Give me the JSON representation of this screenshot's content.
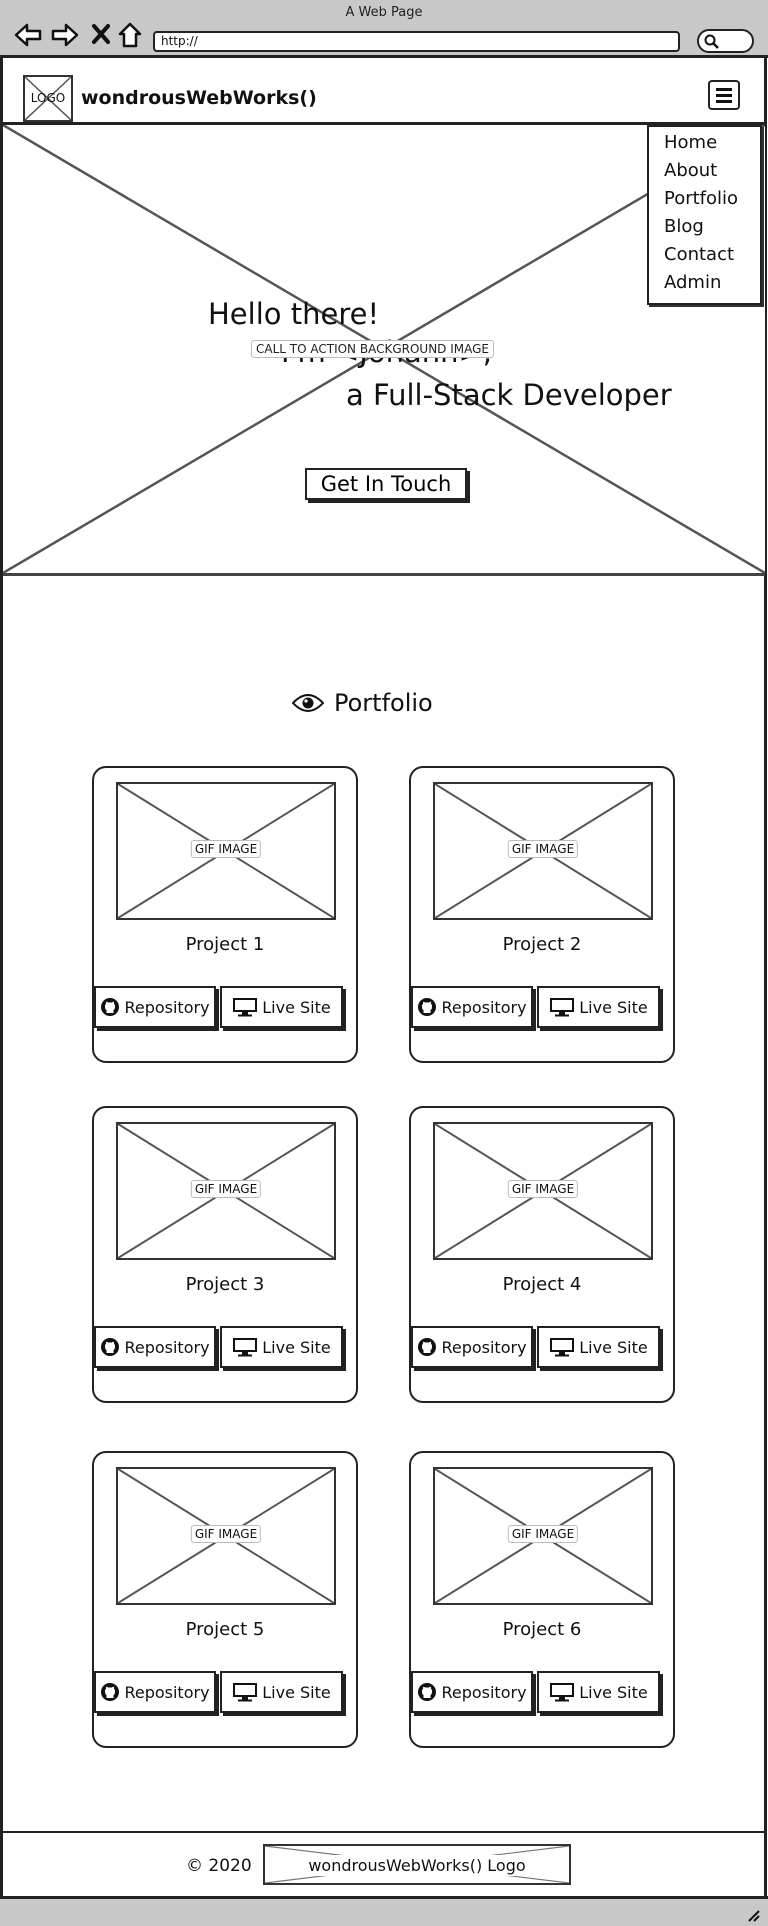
{
  "browser": {
    "title": "A Web Page",
    "url": "http://",
    "icons": [
      "back-arrow-icon",
      "forward-arrow-icon",
      "stop-icon",
      "home-icon",
      "search-icon"
    ]
  },
  "header": {
    "logo_label": "LOGO",
    "brand": "wondrousWebWorks()",
    "menu_icon": "hamburger-icon"
  },
  "menu": {
    "items": [
      "Home",
      "About",
      "Portfolio",
      "Blog",
      "Contact",
      "Admin"
    ]
  },
  "hero": {
    "image_label": "CALL TO ACTION BACKGROUND IMAGE",
    "greeting": "Hello there!",
    "name_line": "I'm <Johann>,",
    "role_line": "a Full-Stack Developer",
    "cta_label": "Get In Touch"
  },
  "portfolio": {
    "title": "Portfolio",
    "title_icon": "eye-icon",
    "image_label": "GIF IMAGE",
    "repo_label": "Repository",
    "repo_icon": "github-icon",
    "live_label": "Live Site",
    "live_icon": "monitor-icon",
    "projects": [
      {
        "title": "Project 1"
      },
      {
        "title": "Project 2"
      },
      {
        "title": "Project 3"
      },
      {
        "title": "Project 4"
      },
      {
        "title": "Project 5"
      },
      {
        "title": "Project 6"
      }
    ]
  },
  "footer": {
    "copyright": "© 2020",
    "logo_label": "wondrousWebWorks() Logo"
  }
}
